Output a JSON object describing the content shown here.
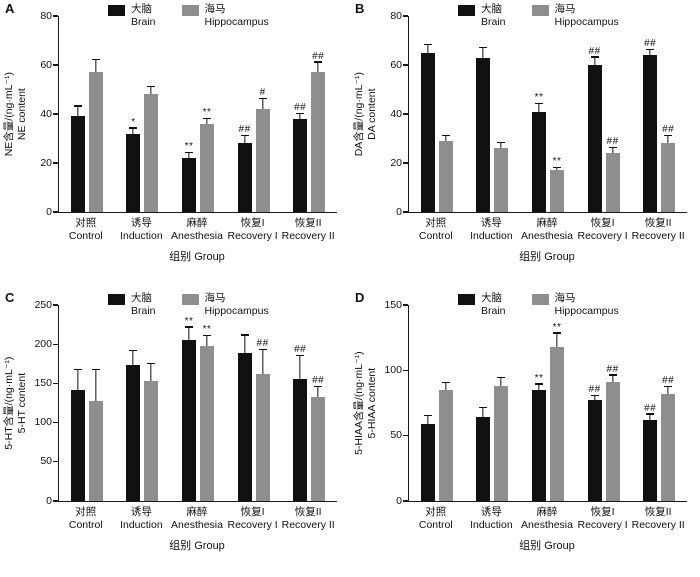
{
  "figure": {
    "background": "#ffffff",
    "legend": [
      {
        "cn": "大脑",
        "en": "Brain",
        "color": "#111111"
      },
      {
        "cn": "海马",
        "en": "Hippocampus",
        "color": "#8e8e8e"
      }
    ]
  },
  "chart_data": [
    {
      "panel": "A",
      "type": "bar",
      "ylabel_cn": "NE含量/(ng·mL⁻¹)",
      "ylabel_en": "NE content",
      "ylim": [
        0,
        80
      ],
      "yticks": [
        0,
        20,
        40,
        60,
        80
      ],
      "categories_cn": [
        "对照",
        "诱导",
        "麻醉",
        "恢复I",
        "恢复II"
      ],
      "categories_en": [
        "Control",
        "Induction",
        "Anesthesia",
        "Recovery I",
        "Recovery II"
      ],
      "xlabel": "组别 Group",
      "series": [
        {
          "name": "Brain",
          "color": "#111111",
          "values": [
            39,
            32,
            22,
            28,
            38
          ],
          "errors": [
            4,
            2,
            2,
            3,
            2
          ],
          "annotations": [
            "",
            "*",
            "**",
            "##",
            "##"
          ]
        },
        {
          "name": "Hippocampus",
          "color": "#8e8e8e",
          "values": [
            57,
            48,
            36,
            42,
            57
          ],
          "errors": [
            5,
            3,
            2,
            4,
            4
          ],
          "annotations": [
            "",
            "",
            "**",
            "#",
            "##"
          ]
        }
      ]
    },
    {
      "panel": "B",
      "type": "bar",
      "ylabel_cn": "DA含量/(ng·mL⁻¹)",
      "ylabel_en": "DA content",
      "ylim": [
        0,
        80
      ],
      "yticks": [
        0,
        20,
        40,
        60,
        80
      ],
      "categories_cn": [
        "对照",
        "诱导",
        "麻醉",
        "恢复I",
        "恢复II"
      ],
      "categories_en": [
        "Control",
        "Induction",
        "Anesthesia",
        "Recovery I",
        "Recovery II"
      ],
      "xlabel": "组别 Group",
      "series": [
        {
          "name": "Brain",
          "color": "#111111",
          "values": [
            65,
            63,
            41,
            60,
            64
          ],
          "errors": [
            3,
            4,
            3,
            3,
            2
          ],
          "annotations": [
            "",
            "",
            "**",
            "##",
            "##"
          ]
        },
        {
          "name": "Hippocampus",
          "color": "#8e8e8e",
          "values": [
            29,
            26,
            17,
            24,
            28
          ],
          "errors": [
            2,
            2,
            1,
            2,
            3
          ],
          "annotations": [
            "",
            "",
            "**",
            "##",
            "##"
          ]
        }
      ]
    },
    {
      "panel": "C",
      "type": "bar",
      "ylabel_cn": "5-HT含量/(ng·mL⁻¹)",
      "ylabel_en": "5-HT content",
      "ylim": [
        0,
        250
      ],
      "yticks": [
        0,
        50,
        100,
        150,
        200,
        250
      ],
      "categories_cn": [
        "对照",
        "诱导",
        "麻醉",
        "恢复I",
        "恢复II"
      ],
      "categories_en": [
        "Control",
        "Induction",
        "Anesthesia",
        "Recovery I",
        "Recovery II"
      ],
      "xlabel": "组别 Group",
      "series": [
        {
          "name": "Brain",
          "color": "#111111",
          "values": [
            142,
            173,
            206,
            189,
            155
          ],
          "errors": [
            25,
            18,
            15,
            22,
            30
          ],
          "annotations": [
            "",
            "",
            "**",
            "",
            "##"
          ]
        },
        {
          "name": "Hippocampus",
          "color": "#8e8e8e",
          "values": [
            127,
            153,
            198,
            162,
            133
          ],
          "errors": [
            40,
            22,
            12,
            30,
            12
          ],
          "annotations": [
            "",
            "",
            "**",
            "##",
            "##"
          ]
        }
      ]
    },
    {
      "panel": "D",
      "type": "bar",
      "ylabel_cn": "5-HIAA含量/(ng·mL⁻¹)",
      "ylabel_en": "5-HIAA content",
      "ylim": [
        0,
        150
      ],
      "yticks": [
        0,
        50,
        100,
        150
      ],
      "categories_cn": [
        "对照",
        "诱导",
        "麻醉",
        "恢复I",
        "恢复II"
      ],
      "categories_en": [
        "Control",
        "Induction",
        "Anesthesia",
        "Recovery I",
        "Recovery II"
      ],
      "xlabel": "组别 Group",
      "series": [
        {
          "name": "Brain",
          "color": "#111111",
          "values": [
            59,
            64,
            85,
            77,
            62
          ],
          "errors": [
            6,
            7,
            4,
            3,
            4
          ],
          "annotations": [
            "",
            "",
            "**",
            "##",
            "##"
          ]
        },
        {
          "name": "Hippocampus",
          "color": "#8e8e8e",
          "values": [
            85,
            88,
            118,
            91,
            82
          ],
          "errors": [
            5,
            6,
            10,
            5,
            5
          ],
          "annotations": [
            "",
            "",
            "**",
            "##",
            "##"
          ]
        }
      ]
    }
  ]
}
